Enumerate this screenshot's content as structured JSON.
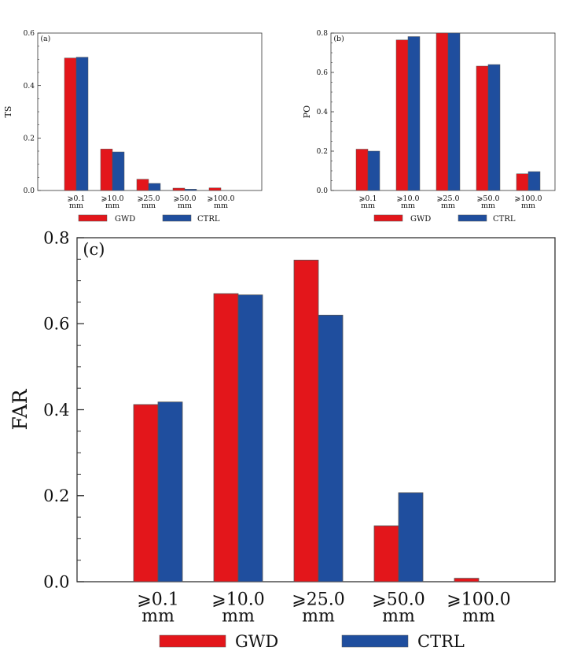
{
  "colors": {
    "gwd": "#e3161b",
    "ctrl": "#1f4e9e",
    "axis": "#333333"
  },
  "chart_data": [
    {
      "id": "a",
      "type": "bar",
      "panel_label": "(a)",
      "title": "",
      "xlabel": "",
      "ylabel": "TS",
      "ylim": [
        0,
        0.6
      ],
      "yticks": [
        "0.0",
        "0.2",
        "0.4",
        "0.6"
      ],
      "categories": [
        [
          "⩾0.1",
          "mm"
        ],
        [
          "⩾10.0",
          "mm"
        ],
        [
          "⩾25.0",
          "mm"
        ],
        [
          "⩾50.0",
          "mm"
        ],
        [
          "⩾100.0",
          "mm"
        ]
      ],
      "series": [
        {
          "name": "GWD",
          "values": [
            0.505,
            0.158,
            0.043,
            0.009,
            0.01
          ]
        },
        {
          "name": "CTRL",
          "values": [
            0.508,
            0.147,
            0.027,
            0.005,
            0.0
          ]
        }
      ],
      "legend": [
        "GWD",
        "CTRL"
      ],
      "legend_position": "bottom"
    },
    {
      "id": "b",
      "type": "bar",
      "panel_label": "(b)",
      "title": "",
      "xlabel": "",
      "ylabel": "PO",
      "ylim": [
        0,
        0.8
      ],
      "yticks": [
        "0.0",
        "0.2",
        "0.4",
        "0.6",
        "0.8"
      ],
      "categories": [
        [
          "⩾0.1",
          "mm"
        ],
        [
          "⩾10.0",
          "mm"
        ],
        [
          "⩾25.0",
          "mm"
        ],
        [
          "⩾50.0",
          "mm"
        ],
        [
          "⩾100.0",
          "mm"
        ]
      ],
      "series": [
        {
          "name": "GWD",
          "values": [
            0.21,
            0.765,
            0.8,
            0.632,
            0.085
          ]
        },
        {
          "name": "CTRL",
          "values": [
            0.2,
            0.782,
            0.8,
            0.64,
            0.096
          ]
        }
      ],
      "legend": [
        "GWD",
        "CTRL"
      ],
      "legend_position": "bottom"
    },
    {
      "id": "c",
      "type": "bar",
      "panel_label": "(c)",
      "title": "",
      "xlabel": "",
      "ylabel": "FAR",
      "ylim": [
        0,
        0.8
      ],
      "yticks": [
        "0.0",
        "0.2",
        "0.4",
        "0.6",
        "0.8"
      ],
      "categories": [
        [
          "⩾0.1",
          "mm"
        ],
        [
          "⩾10.0",
          "mm"
        ],
        [
          "⩾25.0",
          "mm"
        ],
        [
          "⩾50.0",
          "mm"
        ],
        [
          "⩾100.0",
          "mm"
        ]
      ],
      "series": [
        {
          "name": "GWD",
          "values": [
            0.412,
            0.67,
            0.748,
            0.13,
            0.008
          ]
        },
        {
          "name": "CTRL",
          "values": [
            0.418,
            0.667,
            0.62,
            0.207,
            0.0
          ]
        }
      ],
      "legend": [
        "GWD",
        "CTRL"
      ],
      "legend_position": "bottom"
    }
  ]
}
